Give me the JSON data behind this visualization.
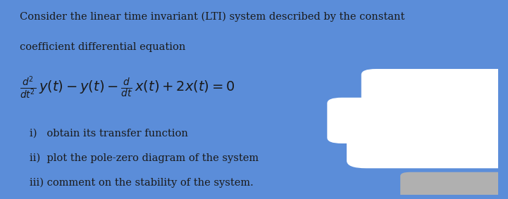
{
  "background_color": "#c8c8c8",
  "paper_color": "#e8e8e8",
  "border_color": "#5b8dd9",
  "text_color": "#1a1a1a",
  "line1": "Consider the linear time invariant (LTI) system described by the constant",
  "line2": "coefficient differential equation",
  "item1": "i)   obtain its transfer function",
  "item2": "ii)  plot the pole-zero diagram of the system",
  "item3": "iii) comment on the stability of the system.",
  "font_size_body": 10.5,
  "font_size_eq": 12,
  "font_family": "serif",
  "figwidth": 7.21,
  "figheight": 2.83,
  "dpi": 100
}
